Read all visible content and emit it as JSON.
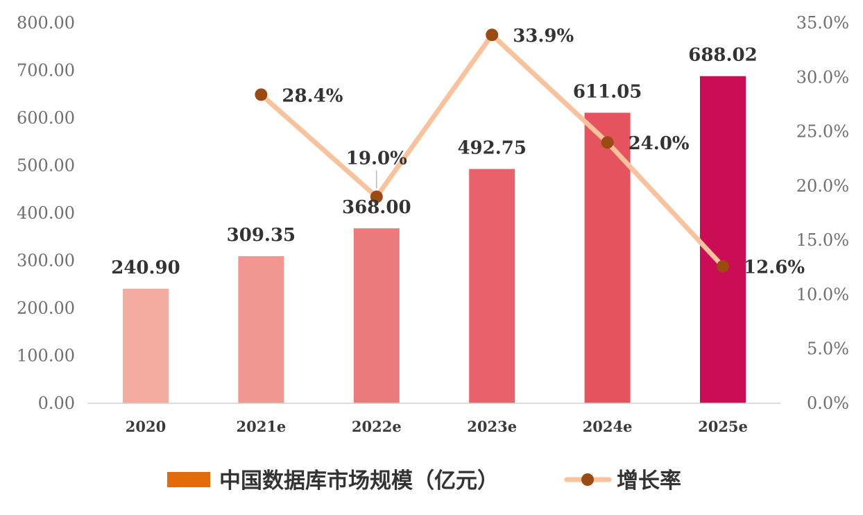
{
  "chart_data": {
    "type": "bar",
    "categories": [
      "2020",
      "2021e",
      "2022e",
      "2023e",
      "2024e",
      "2025e"
    ],
    "series": [
      {
        "name": "中国数据库市场规模（亿元）",
        "kind": "bar",
        "axis": "left",
        "values": [
          240.9,
          309.35,
          368.0,
          492.75,
          611.05,
          688.02
        ],
        "labels": [
          "240.90",
          "309.35",
          "368.00",
          "492.75",
          "611.05",
          "688.02"
        ],
        "colors": [
          "#f4aba0",
          "#f19690",
          "#ec7a7c",
          "#e8616b",
          "#e5535f",
          "#cc0c54"
        ]
      },
      {
        "name": "增长率",
        "kind": "line",
        "axis": "right",
        "values": [
          null,
          28.4,
          19.0,
          33.9,
          24.0,
          12.6
        ],
        "labels": [
          "",
          "28.4%",
          "19.0%",
          "33.9%",
          "24.0%",
          "12.6%"
        ],
        "line_color": "#f8c29c",
        "marker_color": "#9a4a12"
      }
    ],
    "y_left": {
      "range": [
        0,
        800
      ],
      "ticks": [
        "0.00",
        "100.00",
        "200.00",
        "300.00",
        "400.00",
        "500.00",
        "600.00",
        "700.00",
        "800.00"
      ]
    },
    "y_right": {
      "range": [
        0,
        35
      ],
      "ticks": [
        "0.0%",
        "5.0%",
        "10.0%",
        "15.0%",
        "20.0%",
        "25.0%",
        "30.0%",
        "35.0%"
      ]
    },
    "grid": false,
    "legend_position": "bottom",
    "legend_bar_color": "#e36c0a"
  }
}
